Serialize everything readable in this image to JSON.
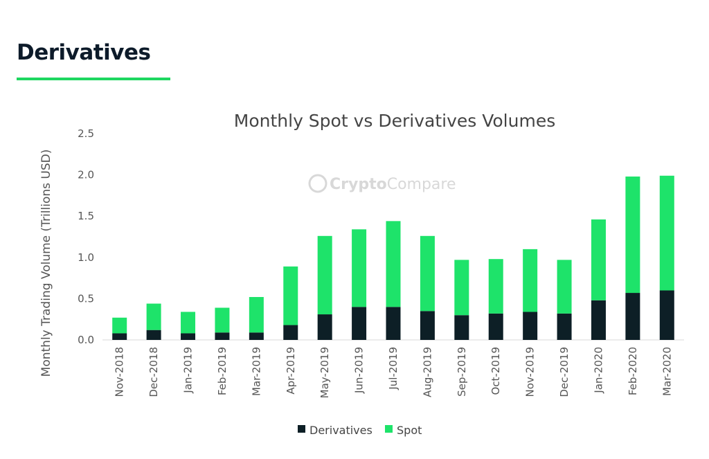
{
  "heading": {
    "text": "Derivatives"
  },
  "watermark": {
    "part1": "Crypto",
    "part2": "Compare"
  },
  "colors": {
    "accent": "#1ed760",
    "derivatives": "#0d1f26",
    "spot": "#1ee36a"
  },
  "chart_data": {
    "type": "bar",
    "stacked": true,
    "title": "Monthly Spot vs Derivatives Volumes",
    "ylabel": "Monthly Trading Volume (Trillions USD)",
    "xlabel": "",
    "ylim": [
      0,
      2.5
    ],
    "yticks": [
      "0.0",
      "0.5",
      "1.0",
      "1.5",
      "2.0",
      "2.5"
    ],
    "grid": false,
    "legend": "bottom",
    "categories": [
      "Nov-2018",
      "Dec-2018",
      "Jan-2019",
      "Feb-2019",
      "Mar-2019",
      "Apr-2019",
      "May-2019",
      "Jun-2019",
      "Jul-2019",
      "Aug-2019",
      "Sep-2019",
      "Oct-2019",
      "Nov-2019",
      "Dec-2019",
      "Jan-2020",
      "Feb-2020",
      "Mar-2020"
    ],
    "series": [
      {
        "name": "Derivatives",
        "values": [
          0.08,
          0.12,
          0.08,
          0.09,
          0.09,
          0.18,
          0.31,
          0.4,
          0.4,
          0.35,
          0.3,
          0.32,
          0.34,
          0.32,
          0.48,
          0.57,
          0.6
        ]
      },
      {
        "name": "Spot",
        "values": [
          0.19,
          0.32,
          0.26,
          0.3,
          0.43,
          0.71,
          0.95,
          0.94,
          1.04,
          0.91,
          0.67,
          0.66,
          0.76,
          0.65,
          0.98,
          1.41,
          1.39
        ]
      }
    ]
  }
}
